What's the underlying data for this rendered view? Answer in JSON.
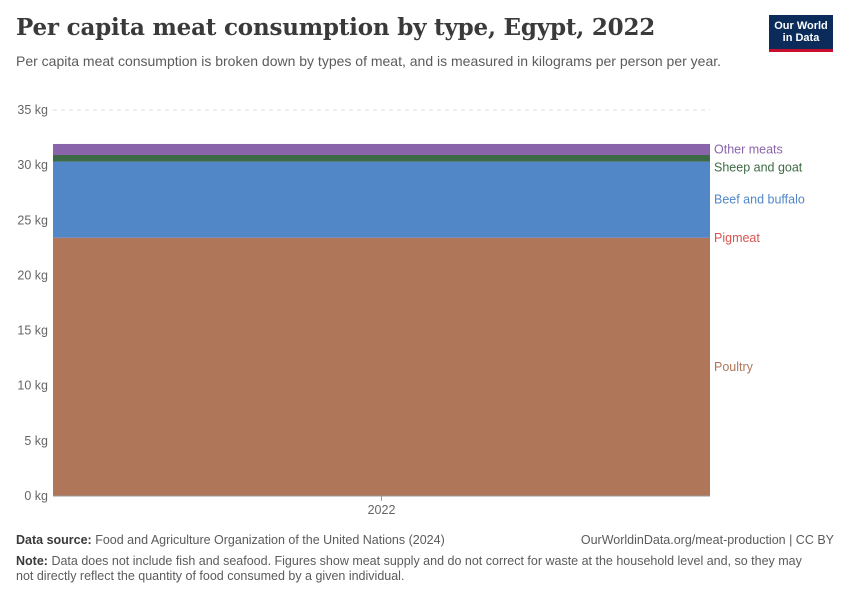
{
  "header": {
    "title": "Per capita meat consumption by type, Egypt, 2022",
    "subtitle": "Per capita meat consumption is broken down by types of meat, and is measured in kilograms per person per year.",
    "logo_line1": "Our World",
    "logo_line2": "in Data"
  },
  "colors": {
    "poultry": "#b0765a",
    "pigmeat": "#e0665c",
    "beef": "#5287c7",
    "sheep": "#3d6a46",
    "other": "#8a64ab",
    "grid": "#dddddd"
  },
  "chart_data": {
    "type": "bar",
    "stacked": true,
    "categories": [
      "2022"
    ],
    "unit": "kg",
    "ylim": [
      0,
      35
    ],
    "yticks": [
      0,
      5,
      10,
      15,
      20,
      25,
      30,
      35
    ],
    "ytick_labels": [
      "0 kg",
      "5 kg",
      "10 kg",
      "15 kg",
      "20 kg",
      "25 kg",
      "30 kg",
      "35 kg"
    ],
    "series": [
      {
        "name": "Poultry",
        "values": [
          23.4
        ],
        "color_key": "poultry"
      },
      {
        "name": "Pigmeat",
        "values": [
          0.02
        ],
        "color_key": "pigmeat"
      },
      {
        "name": "Beef and buffalo",
        "values": [
          6.9
        ],
        "color_key": "beef"
      },
      {
        "name": "Sheep and goat",
        "values": [
          0.6
        ],
        "color_key": "sheep"
      },
      {
        "name": "Other meats",
        "values": [
          1.0
        ],
        "color_key": "other"
      }
    ]
  },
  "footer": {
    "source_label": "Data source:",
    "source_text": "Food and Agriculture Organization of the United Nations (2024)",
    "license": "OurWorldinData.org/meat-production | CC BY",
    "note_label": "Note:",
    "note_text": "Data does not include fish and seafood. Figures show meat supply and do not correct for waste at the household level and, so they may not directly reflect the quantity of food consumed by a given individual."
  }
}
